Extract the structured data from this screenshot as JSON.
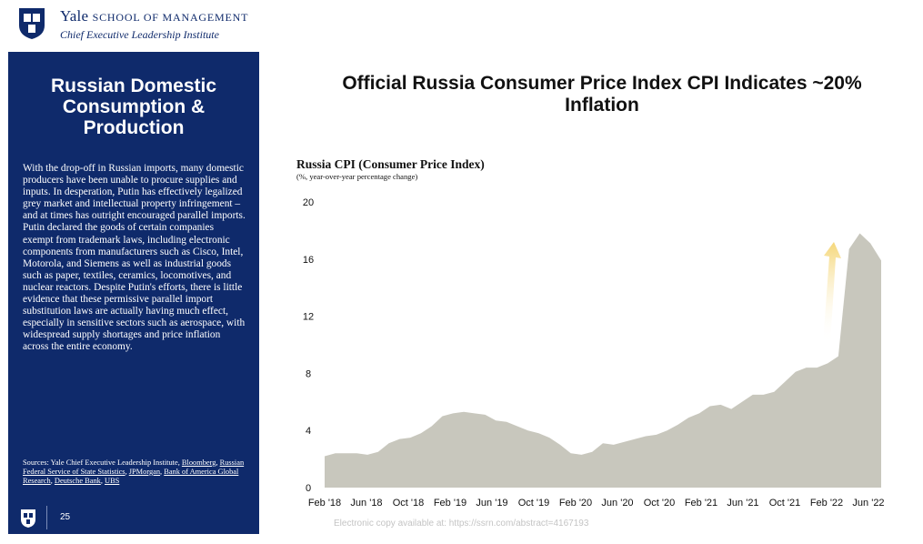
{
  "header": {
    "yale": "Yale",
    "school": "SCHOOL OF MANAGEMENT",
    "subtitle": "Chief Executive Leadership Institute"
  },
  "sidebar": {
    "title": "Russian Domestic Consumption & Production",
    "body": "With the drop-off in Russian imports, many domestic producers have been unable to procure supplies and inputs. In desperation, Putin has effectively legalized grey market and intellectual property infringement – and at times has outright encouraged parallel imports. Putin declared the goods of certain companies exempt from trademark laws, including electronic components from manufacturers such as Cisco, Intel, Motorola, and Siemens as well as industrial goods such as paper, textiles, ceramics, locomotives, and nuclear reactors. Despite Putin's efforts, there is little evidence that these permissive parallel import substitution laws are actually having much effect, especially in sensitive sectors such as aerospace, with widespread supply shortages and price inflation across the entire economy.",
    "sources_prefix": "Sources: Yale Chief Executive Leadership Institute, ",
    "sources_links": [
      "Bloomberg",
      "Russian Federal Service of State Statistics",
      "JPMorgan",
      "Bank of America Global Research",
      "Deutsche Bank",
      "UBS"
    ],
    "page_number": "25"
  },
  "main": {
    "title": "Official Russia Consumer Price Index CPI Indicates ~20% Inflation"
  },
  "footer_note": "Electronic copy available at: https://ssrn.com/abstract=4167193",
  "colors": {
    "navy": "#0f2a6b",
    "area": "#c8c7bd",
    "arrow": "#f5d77a"
  },
  "chart_data": {
    "type": "area",
    "title": "Russia CPI (Consumer Price Index)",
    "subtitle": "(%, year-over-year percentage change)",
    "xlabel": "",
    "ylabel": "",
    "ylim": [
      0,
      20
    ],
    "yticks": [
      0,
      4,
      8,
      12,
      16,
      20
    ],
    "xticks": [
      "Feb '18",
      "Jun '18",
      "Oct '18",
      "Feb '19",
      "Jun '19",
      "Oct '19",
      "Feb '20",
      "Jun '20",
      "Oct '20",
      "Feb '21",
      "Jun '21",
      "Oct '21",
      "Feb '22",
      "Jun '22"
    ],
    "grid": false,
    "annotation": "upward arrow near the Feb '22 spike",
    "series": [
      {
        "name": "Russia CPI y/y %",
        "x": [
          "Feb '18",
          "Mar '18",
          "Apr '18",
          "May '18",
          "Jun '18",
          "Jul '18",
          "Aug '18",
          "Sep '18",
          "Oct '18",
          "Nov '18",
          "Dec '18",
          "Jan '19",
          "Feb '19",
          "Mar '19",
          "Apr '19",
          "May '19",
          "Jun '19",
          "Jul '19",
          "Aug '19",
          "Sep '19",
          "Oct '19",
          "Nov '19",
          "Dec '19",
          "Jan '20",
          "Feb '20",
          "Mar '20",
          "Apr '20",
          "May '20",
          "Jun '20",
          "Jul '20",
          "Aug '20",
          "Sep '20",
          "Oct '20",
          "Nov '20",
          "Dec '20",
          "Jan '21",
          "Feb '21",
          "Mar '21",
          "Apr '21",
          "May '21",
          "Jun '21",
          "Jul '21",
          "Aug '21",
          "Sep '21",
          "Oct '21",
          "Nov '21",
          "Dec '21",
          "Jan '22",
          "Feb '22",
          "Mar '22",
          "Apr '22",
          "May '22",
          "Jun '22"
        ],
        "values": [
          2.2,
          2.4,
          2.4,
          2.4,
          2.3,
          2.5,
          3.1,
          3.4,
          3.5,
          3.8,
          4.3,
          5.0,
          5.2,
          5.3,
          5.2,
          5.1,
          4.7,
          4.6,
          4.3,
          4.0,
          3.8,
          3.5,
          3.0,
          2.4,
          2.3,
          2.5,
          3.1,
          3.0,
          3.2,
          3.4,
          3.6,
          3.7,
          4.0,
          4.4,
          4.9,
          5.2,
          5.7,
          5.8,
          5.5,
          6.0,
          6.5,
          6.5,
          6.7,
          7.4,
          8.1,
          8.4,
          8.4,
          8.7,
          9.2,
          16.7,
          17.8,
          17.1,
          15.9
        ]
      }
    ]
  }
}
